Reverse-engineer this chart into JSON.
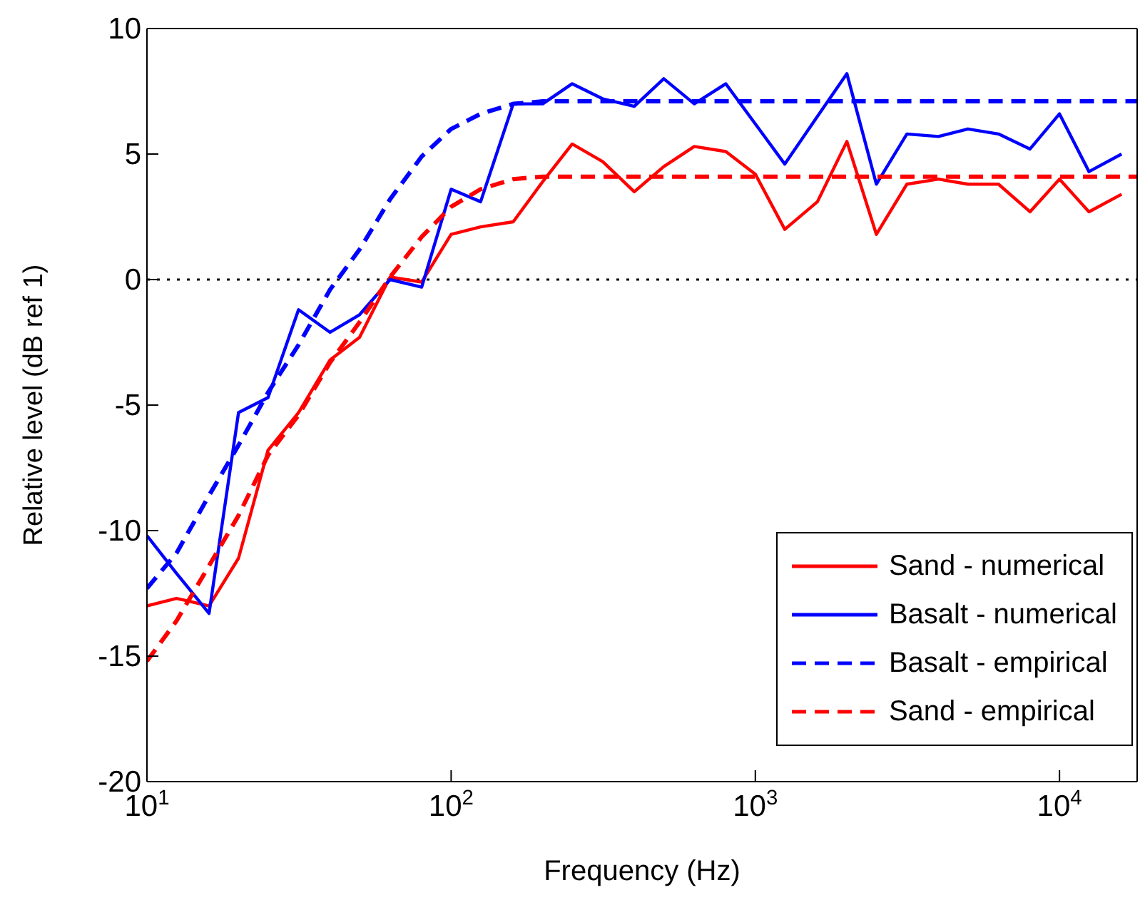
{
  "chart_data": {
    "type": "line",
    "xlabel": "Frequency (Hz)",
    "ylabel": "Relative level (dB ref 1)",
    "log": "x",
    "xlim": [
      10,
      18000
    ],
    "xticks": [
      {
        "value": 10,
        "label": "10$^{1}$"
      },
      {
        "value": 100,
        "label": "10$^{2}$"
      },
      {
        "value": 1000,
        "label": "10$^{3}$"
      },
      {
        "value": 10000,
        "label": "10$^{4}$"
      }
    ],
    "ylim": [
      -20,
      10
    ],
    "yticks": [
      -20,
      -15,
      -10,
      -5,
      0,
      5,
      10
    ],
    "legend": "bottom right",
    "marker": "none",
    "ref_lines": [
      {
        "axis": "y",
        "value": 0,
        "color": "#000000",
        "line_style": "dotted"
      }
    ],
    "x": [
      10,
      12.5,
      16,
      20,
      25,
      31.5,
      40,
      50,
      63,
      80,
      100,
      125,
      160,
      200,
      250,
      315,
      400,
      500,
      630,
      800,
      1000,
      1250,
      1600,
      2000,
      2500,
      3150,
      4000,
      5000,
      6300,
      8000,
      10000,
      12500,
      16000
    ],
    "series": [
      {
        "name": "Sand - numerical",
        "color": "#ff0000",
        "line_style": "solid",
        "values": [
          -13.0,
          -12.7,
          -13.0,
          -11.1,
          -6.8,
          -5.3,
          -3.2,
          -2.3,
          0.1,
          -0.1,
          1.8,
          2.1,
          2.3,
          3.9,
          5.4,
          4.7,
          3.5,
          4.5,
          5.3,
          5.1,
          4.2,
          2.0,
          3.1,
          5.5,
          1.8,
          3.8,
          4.0,
          3.8,
          3.8,
          2.7,
          4.0,
          2.7,
          3.4
        ]
      },
      {
        "name": "Basalt - numerical",
        "color": "#0000ff",
        "line_style": "solid",
        "values": [
          -10.2,
          -11.7,
          -13.3,
          -5.3,
          -4.7,
          -1.2,
          -2.1,
          -1.4,
          0.0,
          -0.3,
          3.6,
          3.1,
          7.0,
          7.0,
          7.8,
          7.2,
          6.9,
          8.0,
          7.0,
          7.8,
          6.2,
          4.6,
          6.5,
          8.2,
          3.8,
          5.8,
          5.7,
          6.0,
          5.8,
          5.2,
          6.6,
          4.3,
          5.0
        ]
      },
      {
        "name": "Basalt - empirical",
        "color": "#0000ff",
        "line_style": "dashed",
        "x": [
          10,
          12.5,
          16,
          20,
          25,
          31.5,
          40,
          50,
          63,
          80,
          100,
          125,
          160,
          200,
          18000
        ],
        "values": [
          -12.3,
          -10.9,
          -8.6,
          -6.6,
          -4.5,
          -2.6,
          -0.4,
          1.2,
          3.2,
          4.9,
          6.0,
          6.6,
          7.0,
          7.1,
          7.1
        ]
      },
      {
        "name": "Sand - empirical",
        "color": "#ff0000",
        "line_style": "dashed",
        "x": [
          10,
          12.5,
          16,
          20,
          25,
          31.5,
          40,
          50,
          63,
          80,
          100,
          125,
          160,
          200,
          18000
        ],
        "values": [
          -15.2,
          -13.6,
          -11.4,
          -9.4,
          -7.0,
          -5.4,
          -3.3,
          -1.7,
          0.1,
          1.7,
          2.9,
          3.6,
          4.0,
          4.1,
          4.1
        ]
      }
    ]
  }
}
